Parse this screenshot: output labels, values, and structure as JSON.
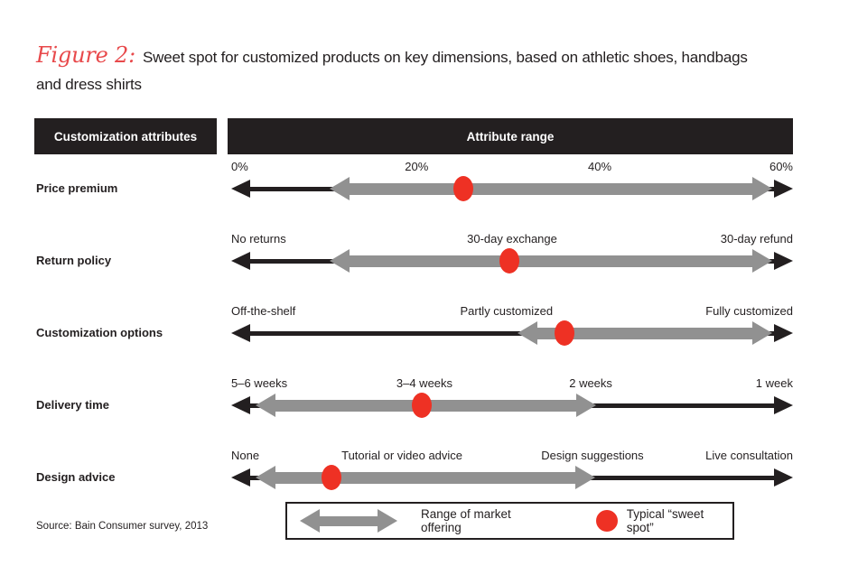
{
  "title": {
    "figure_label": "Figure 2:",
    "line1": "Sweet spot for customized products on key dimensions, based on athletic shoes, handbags",
    "line2": "and dress shirts"
  },
  "header": {
    "attributes_label": "Customization attributes",
    "range_label": "Attribute range"
  },
  "legend": {
    "range_label": "Range of market offering",
    "sweet_spot_label": "Typical “sweet spot”"
  },
  "source": {
    "text": "Source: Bain Consumer survey, 2013"
  },
  "colors": {
    "black": "#231f20",
    "gray_range": "#919191",
    "red_dot": "#ee3124",
    "title_red": "#e8494b",
    "header_bg": "#231f20",
    "header_text": "#ffffff"
  },
  "chart_data": {
    "type": "bar",
    "subtype": "horizontal-range-arrows-with-sweet-spot-dots",
    "title": "Sweet spot for customized products on key dimensions, based on athletic shoes, handbags and dress shirts",
    "xlabel": "Attribute range",
    "ylabel": "Customization attributes",
    "axis_units": "fraction of full attribute-range axis (0 = left end, 1 = right end)",
    "legend_entries": [
      "Range of market offering",
      "Typical “sweet spot”"
    ],
    "legend_position": "bottom-center",
    "grid": false,
    "rows": [
      {
        "attribute": "Price premium",
        "ticks": [
          {
            "text": "0%",
            "pos": 0,
            "align": "left"
          },
          {
            "text": "20%",
            "pos": 0.33,
            "align": "center"
          },
          {
            "text": "40%",
            "pos": 0.656,
            "align": "center"
          },
          {
            "text": "60%",
            "pos": 1,
            "align": "right"
          }
        ],
        "market_range": [
          0.175,
          0.963
        ],
        "market_range_estimate": "~11% to ~58%",
        "sweet_spot": 0.413,
        "sweet_spot_estimate": "~25%"
      },
      {
        "attribute": "Return policy",
        "ticks": [
          {
            "text": "No returns",
            "pos": 0,
            "align": "left"
          },
          {
            "text": "30-day exchange",
            "pos": 0.5,
            "align": "center"
          },
          {
            "text": "30-day refund",
            "pos": 1,
            "align": "right"
          }
        ],
        "market_range": [
          0.175,
          0.963
        ],
        "market_range_estimate": "just past No returns to 30-day refund",
        "sweet_spot": 0.495,
        "sweet_spot_estimate": "30-day exchange"
      },
      {
        "attribute": "Customization options",
        "ticks": [
          {
            "text": "Off-the-shelf",
            "pos": 0,
            "align": "left"
          },
          {
            "text": "Partly customized",
            "pos": 0.49,
            "align": "center"
          },
          {
            "text": "Fully customized",
            "pos": 1,
            "align": "right"
          }
        ],
        "market_range": [
          0.51,
          0.963
        ],
        "market_range_estimate": "Partly customized to Fully customized",
        "sweet_spot": 0.593,
        "sweet_spot_estimate": "slightly beyond Partly customized"
      },
      {
        "attribute": "Delivery time",
        "ticks": [
          {
            "text": "5–6 weeks",
            "pos": 0,
            "align": "left"
          },
          {
            "text": "3–4 weeks",
            "pos": 0.344,
            "align": "center"
          },
          {
            "text": "2 weeks",
            "pos": 0.64,
            "align": "center"
          },
          {
            "text": "1 week",
            "pos": 1,
            "align": "right"
          }
        ],
        "market_range": [
          0.043,
          0.65
        ],
        "market_range_estimate": "5–6 weeks to 2 weeks",
        "sweet_spot": 0.34,
        "sweet_spot_estimate": "3–4 weeks"
      },
      {
        "attribute": "Design advice",
        "ticks": [
          {
            "text": "None",
            "pos": 0,
            "align": "left"
          },
          {
            "text": "Tutorial or video advice",
            "pos": 0.304,
            "align": "center"
          },
          {
            "text": "Design suggestions",
            "pos": 0.643,
            "align": "center"
          },
          {
            "text": "Live consultation",
            "pos": 1,
            "align": "right"
          }
        ],
        "market_range": [
          0.043,
          0.648
        ],
        "market_range_estimate": "None to Design suggestions",
        "sweet_spot": 0.178,
        "sweet_spot_estimate": "between None and Tutorial or video advice"
      }
    ]
  }
}
